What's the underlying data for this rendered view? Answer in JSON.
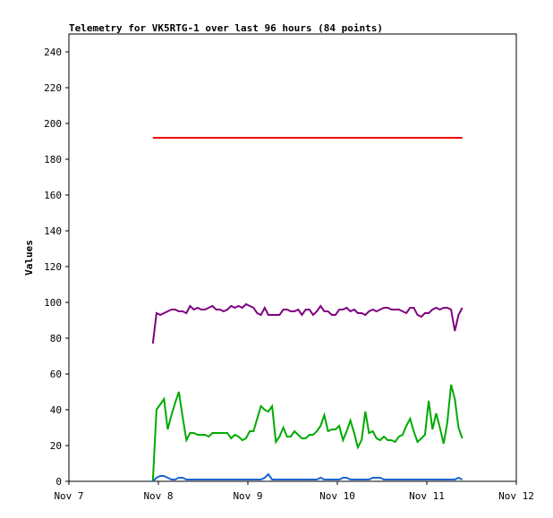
{
  "chart_data": {
    "type": "line",
    "title": "Telemetry for VK5RTG-1 over last 96 hours (84 points)",
    "xlabel": "",
    "ylabel": "Values",
    "ylim": [
      0,
      250
    ],
    "yticks": [
      0,
      20,
      40,
      60,
      80,
      100,
      120,
      140,
      160,
      180,
      200,
      220,
      240
    ],
    "xlim": [
      "Nov 7",
      "Nov 12"
    ],
    "xticks": [
      "Nov 7",
      "Nov 8",
      "Nov 9",
      "Nov 10",
      "Nov 11",
      "Nov 12"
    ],
    "grid": false,
    "x": [
      "Nov 7 22:30",
      "Nov 7 23:30",
      "Nov 8 00:30",
      "Nov 8 01:30",
      "Nov 8 02:30",
      "Nov 8 03:30",
      "Nov 8 04:30",
      "Nov 8 05:30",
      "Nov 8 06:30",
      "Nov 8 07:30",
      "Nov 8 08:30",
      "Nov 8 09:30",
      "Nov 8 10:30",
      "Nov 8 11:30",
      "Nov 8 12:30",
      "Nov 8 13:30",
      "Nov 8 14:30",
      "Nov 8 15:30",
      "Nov 8 16:30",
      "Nov 8 17:30",
      "Nov 8 18:30",
      "Nov 8 19:30",
      "Nov 8 20:30",
      "Nov 8 21:30",
      "Nov 8 22:30",
      "Nov 8 23:30",
      "Nov 9 00:30",
      "Nov 9 01:30",
      "Nov 9 02:30",
      "Nov 9 03:30",
      "Nov 9 04:30",
      "Nov 9 05:30",
      "Nov 9 06:30",
      "Nov 9 07:30",
      "Nov 9 08:30",
      "Nov 9 09:30",
      "Nov 9 10:30",
      "Nov 9 11:30",
      "Nov 9 12:30",
      "Nov 9 13:30",
      "Nov 9 14:30",
      "Nov 9 15:30",
      "Nov 9 16:30",
      "Nov 9 17:30",
      "Nov 9 18:30",
      "Nov 9 19:30",
      "Nov 9 20:30",
      "Nov 9 21:30",
      "Nov 9 22:30",
      "Nov 9 23:30",
      "Nov 10 00:30",
      "Nov 10 01:30",
      "Nov 10 02:30",
      "Nov 10 03:30",
      "Nov 10 04:30",
      "Nov 10 05:30",
      "Nov 10 06:30",
      "Nov 10 07:30",
      "Nov 10 08:30",
      "Nov 10 09:30",
      "Nov 10 10:30",
      "Nov 10 11:30",
      "Nov 10 12:30",
      "Nov 10 13:30",
      "Nov 10 14:30",
      "Nov 10 15:30",
      "Nov 10 16:30",
      "Nov 10 17:30",
      "Nov 10 18:30",
      "Nov 10 19:30",
      "Nov 10 20:30",
      "Nov 10 21:30",
      "Nov 10 22:30",
      "Nov 10 23:30",
      "Nov 11 00:30",
      "Nov 11 01:30",
      "Nov 11 02:30",
      "Nov 11 03:30",
      "Nov 11 04:30",
      "Nov 11 05:30",
      "Nov 11 06:30",
      "Nov 11 07:30",
      "Nov 11 08:30",
      "Nov 11 09:30"
    ],
    "series": [
      {
        "color": "#ee0000",
        "values": [
          192,
          192,
          192,
          192,
          192,
          192,
          192,
          192,
          192,
          192,
          192,
          192,
          192,
          192,
          192,
          192,
          192,
          192,
          192,
          192,
          192,
          192,
          192,
          192,
          192,
          192,
          192,
          192,
          192,
          192,
          192,
          192,
          192,
          192,
          192,
          192,
          192,
          192,
          192,
          192,
          192,
          192,
          192,
          192,
          192,
          192,
          192,
          192,
          192,
          192,
          192,
          192,
          192,
          192,
          192,
          192,
          192,
          192,
          192,
          192,
          192,
          192,
          192,
          192,
          192,
          192,
          192,
          192,
          192,
          192,
          192,
          192,
          192,
          192,
          192,
          192,
          192,
          192,
          192,
          192,
          192,
          192,
          192,
          192
        ]
      },
      {
        "color": "#800080",
        "values": [
          77,
          94,
          93,
          94,
          95,
          96,
          96,
          95,
          95,
          94,
          98,
          96,
          97,
          96,
          96,
          97,
          98,
          96,
          96,
          95,
          96,
          98,
          97,
          98,
          97,
          99,
          98,
          97,
          94,
          93,
          97,
          93,
          93,
          93,
          93,
          96,
          96,
          95,
          95,
          96,
          93,
          96,
          96,
          93,
          95,
          98,
          95,
          95,
          93,
          93,
          96,
          96,
          97,
          95,
          96,
          94,
          94,
          93,
          95,
          96,
          95,
          96,
          97,
          97,
          96,
          96,
          96,
          95,
          94,
          97,
          97,
          93,
          92,
          94,
          94,
          96,
          97,
          96,
          97,
          97,
          96,
          84,
          93,
          97
        ]
      },
      {
        "color": "#00aa00",
        "values": [
          0,
          40,
          43,
          46,
          29,
          37,
          44,
          50,
          36,
          23,
          27,
          27,
          26,
          26,
          26,
          25,
          27,
          27,
          27,
          27,
          27,
          24,
          26,
          25,
          23,
          24,
          28,
          28,
          35,
          42,
          40,
          39,
          42,
          22,
          25,
          30,
          25,
          25,
          28,
          26,
          24,
          24,
          26,
          26,
          28,
          31,
          37,
          28,
          29,
          29,
          31,
          23,
          28,
          34,
          27,
          19,
          23,
          39,
          27,
          28,
          24,
          23,
          25,
          23,
          23,
          22,
          25,
          26,
          31,
          35,
          28,
          22,
          24,
          26,
          45,
          29,
          38,
          30,
          21,
          33,
          54,
          46,
          30,
          24
        ]
      },
      {
        "color": "#1a66cc",
        "values": [
          0,
          2,
          3,
          3,
          2,
          1,
          1,
          2,
          2,
          1,
          1,
          1,
          1,
          1,
          1,
          1,
          1,
          1,
          1,
          1,
          1,
          1,
          1,
          1,
          1,
          1,
          1,
          1,
          1,
          1,
          2,
          4,
          1,
          1,
          1,
          1,
          1,
          1,
          1,
          1,
          1,
          1,
          1,
          1,
          1,
          2,
          1,
          1,
          1,
          1,
          1,
          2,
          2,
          1,
          1,
          1,
          1,
          1,
          1,
          2,
          2,
          2,
          1,
          1,
          1,
          1,
          1,
          1,
          1,
          1,
          1,
          1,
          1,
          1,
          1,
          1,
          1,
          1,
          1,
          1,
          1,
          1,
          2,
          1
        ]
      }
    ]
  }
}
